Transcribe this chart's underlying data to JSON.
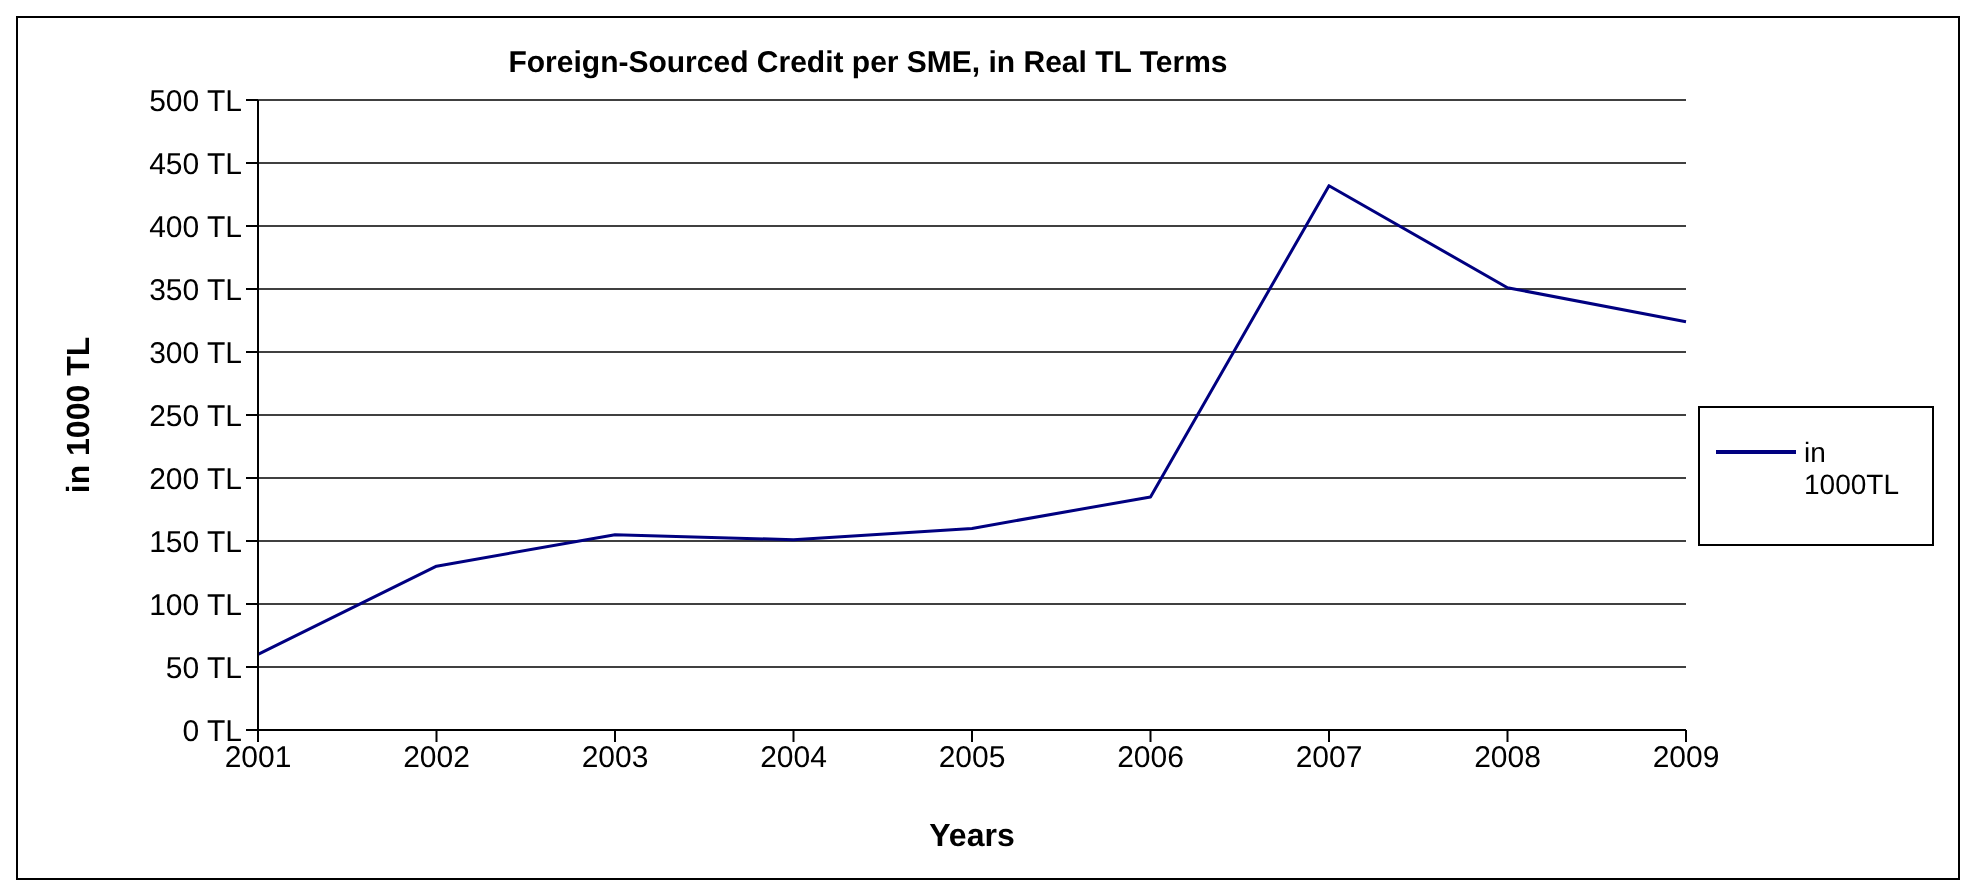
{
  "chart_data": {
    "type": "line",
    "title": "Foreign-Sourced Credit per SME, in Real TL Terms",
    "xlabel": "Years",
    "ylabel": "in 1000 TL",
    "categories": [
      "2001",
      "2002",
      "2003",
      "2004",
      "2005",
      "2006",
      "2007",
      "2008",
      "2009"
    ],
    "series": [
      {
        "name": "in 1000TL",
        "color": "#000080",
        "values": [
          60,
          130,
          155,
          151,
          160,
          185,
          432,
          351,
          324
        ]
      }
    ],
    "ylim": [
      0,
      500
    ],
    "yticks": [
      {
        "value": 0,
        "label": "0 TL"
      },
      {
        "value": 50,
        "label": "50 TL"
      },
      {
        "value": 100,
        "label": "100 TL"
      },
      {
        "value": 150,
        "label": "150 TL"
      },
      {
        "value": 200,
        "label": "200 TL"
      },
      {
        "value": 250,
        "label": "250 TL"
      },
      {
        "value": 300,
        "label": "300 TL"
      },
      {
        "value": 350,
        "label": "350 TL"
      },
      {
        "value": 400,
        "label": "400 TL"
      },
      {
        "value": 450,
        "label": "450 TL"
      },
      {
        "value": 500,
        "label": "500 TL"
      }
    ],
    "grid": "y",
    "legend": "right",
    "marker": "none",
    "line_style": "solid"
  }
}
